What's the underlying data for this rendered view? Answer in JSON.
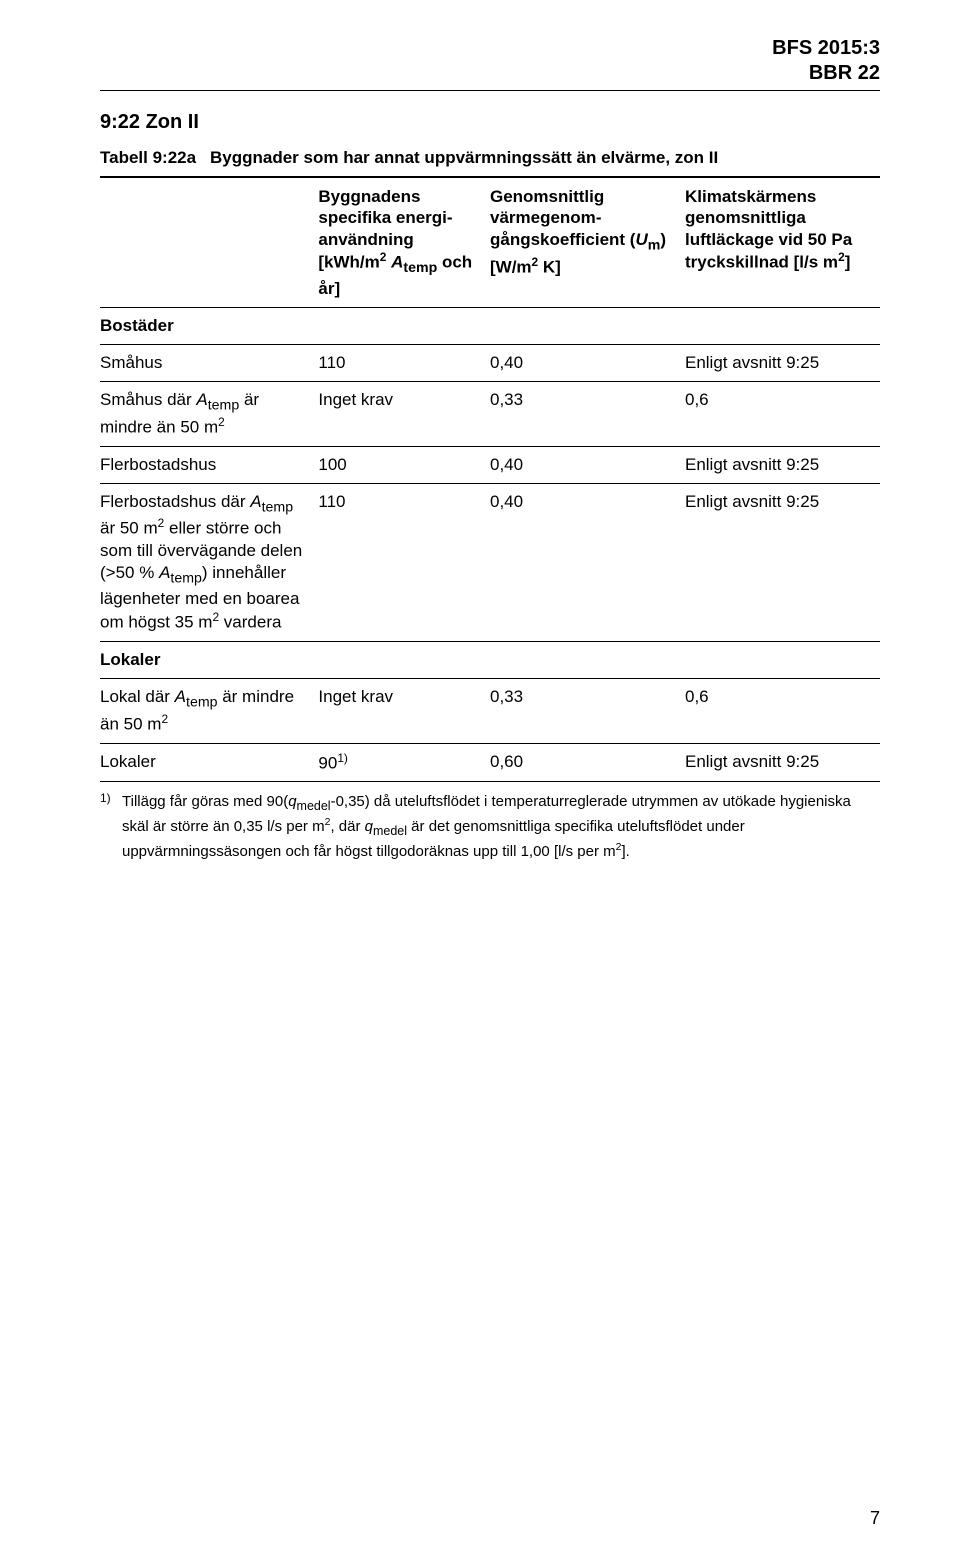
{
  "document": {
    "code": "BFS 2015:3",
    "subcode": "BBR 22",
    "page_number": "7"
  },
  "section": {
    "title": "9:22 Zon II"
  },
  "table": {
    "label": "Tabell 9:22a",
    "caption": "Byggnader som har annat uppvärmningssätt än elvärme, zon II",
    "columns": {
      "c1": "",
      "c2_lines": [
        "Byggnadens",
        "specifika energi-",
        "användning",
        "[kWh/m² Atemp och",
        "år]"
      ],
      "c2_html": "Byggnadens specifika energi­användning [kWh/m<sup>2</sup> <span class='sub'>A</span><sub>temp</sub> och år]",
      "c3_html": "Genomsnittlig värmegenom­gångskoefficient (<span class='sub'>U</span><sub>m</sub>) [W/m<sup>2</sup> K]",
      "c4_html": "Klimatskärmens genomsnittliga luftläckage vid 50 Pa tryckskillnad [l/s m<sup>2</sup>]"
    },
    "rows": [
      {
        "type": "section",
        "c1": "Bostäder"
      },
      {
        "c1": "Småhus",
        "c2": "110",
        "c3": "0,40",
        "c4": "Enligt avsnitt 9:25"
      },
      {
        "c1_html": "Småhus där <span class='sub'>A</span><sub>temp</sub> är mindre än 50 m<sup>2</sup>",
        "c2": "Inget krav",
        "c3": "0,33",
        "c4": "0,6"
      },
      {
        "c1": "Flerbostadshus",
        "c2": "100",
        "c3": "0,40",
        "c4": "Enligt avsnitt 9:25"
      },
      {
        "c1_html": "Flerbostadshus där <span class='sub'>A</span><sub>temp</sub> är 50 m<sup>2</sup> eller större och som till övervägande delen (>50 % <span class='sub'>A</span><sub>temp</sub>) inne­håller lägenheter med en boarea om högst 35 m<sup>2</sup> vardera",
        "c2": "110",
        "c3": "0,40",
        "c4": "Enligt avsnitt 9:25"
      },
      {
        "type": "section",
        "c1": "Lokaler"
      },
      {
        "c1_html": "Lokal där <span class='sub'>A</span><sub>temp</sub> är mindre än 50 m<sup>2</sup>",
        "c2": "Inget krav",
        "c3": "0,33",
        "c4": "0,6"
      },
      {
        "c1": "Lokaler",
        "c2_html": "90<sup>1)</sup>",
        "c3": "0,60",
        "c4": "Enligt avsnitt 9:25"
      }
    ]
  },
  "footnote": {
    "marker": "1)",
    "text_html": "Tillägg får göras med 90(<span class='sub'>q</span><sub>medel</sub>-0,35) då uteluftsflödet i temperaturreglerade utrymmen av utökade hygieniska skäl är större än 0,35 l/s per m<sup>2</sup>, där <span class='sub'>q</span><sub>medel</sub> är det genomsnittliga specifika uteluftsflödet under uppvärmningssäsongen och får högst tillgodoräknas upp till 1,00 [l/s per m<sup>2</sup>]."
  }
}
